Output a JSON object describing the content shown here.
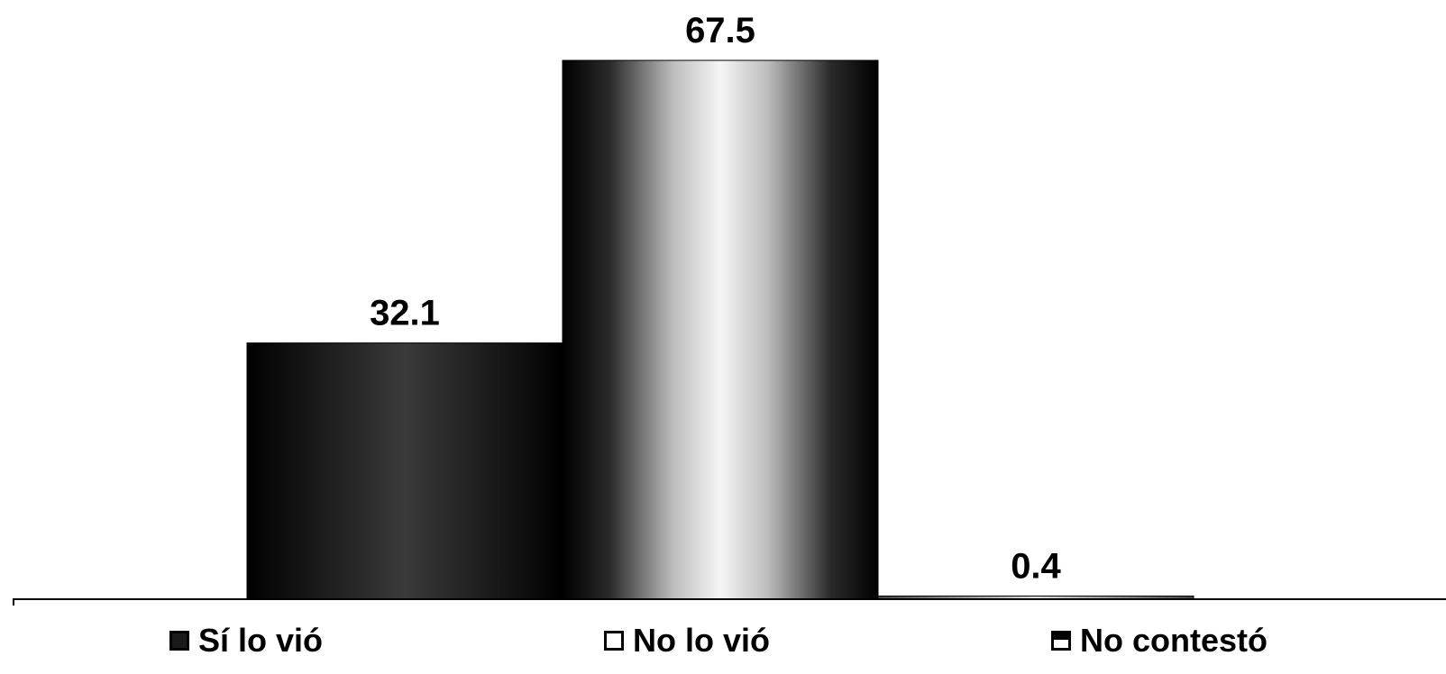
{
  "chart_data": {
    "type": "bar",
    "categories": [
      "Sí lo vió",
      "No lo vió",
      "No contestó"
    ],
    "values": [
      32.1,
      67.5,
      0.4
    ],
    "data_labels": [
      "32.1",
      "67.5",
      "0.4"
    ],
    "title": "",
    "xlabel": "",
    "ylabel": "",
    "ylim": [
      0,
      70
    ],
    "grid": false,
    "legend_position": "bottom",
    "colors": {
      "dark": "#111111",
      "light": "#f2f2f2",
      "axis": "#000000"
    }
  }
}
